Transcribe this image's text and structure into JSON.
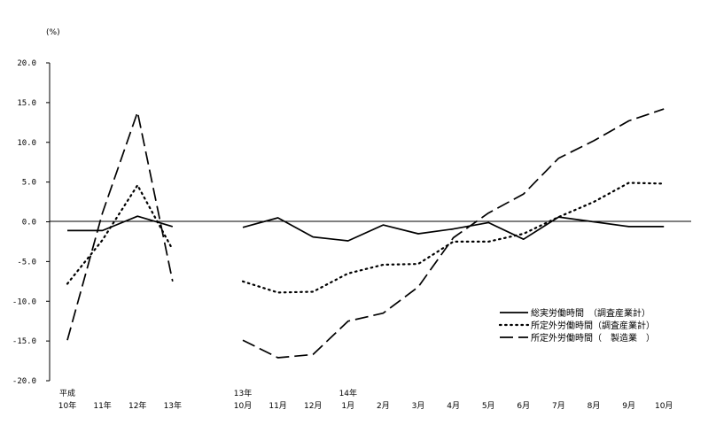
{
  "chart_data": {
    "type": "line",
    "unit": "(%)",
    "ylim": [
      -20,
      20
    ],
    "yticks": [
      "20.0",
      "15.0",
      "10.0",
      "5.0",
      "0.0",
      "-5.0",
      "-10.0",
      "-15.0",
      "-20.0"
    ],
    "ytick_values": [
      20,
      15,
      10,
      5,
      0,
      -5,
      -10,
      -15,
      -20
    ],
    "x_labels": [
      {
        "top": "平成",
        "bottom": "10年"
      },
      {
        "top": "",
        "bottom": "11年"
      },
      {
        "top": "",
        "bottom": "12年"
      },
      {
        "top": "",
        "bottom": "13年"
      },
      {
        "top": "",
        "bottom": ""
      },
      {
        "top": "13年",
        "bottom": "10月"
      },
      {
        "top": "",
        "bottom": "11月"
      },
      {
        "top": "",
        "bottom": "12月"
      },
      {
        "top": "14年",
        "bottom": "1月"
      },
      {
        "top": "",
        "bottom": "2月"
      },
      {
        "top": "",
        "bottom": "3月"
      },
      {
        "top": "",
        "bottom": "4月"
      },
      {
        "top": "",
        "bottom": "5月"
      },
      {
        "top": "",
        "bottom": "6月"
      },
      {
        "top": "",
        "bottom": "7月"
      },
      {
        "top": "",
        "bottom": "8月"
      },
      {
        "top": "",
        "bottom": "9月"
      },
      {
        "top": "",
        "bottom": "10月"
      }
    ],
    "grid": false,
    "legend_position": "bottom-right",
    "series": [
      {
        "name": "総実労働時間　（調査産業計）",
        "style": "solid",
        "segments": [
          [
            -1.1,
            -1.1,
            0.7,
            -0.6
          ],
          [
            -0.7,
            0.5,
            -1.9,
            -2.4,
            -0.4,
            -1.5,
            -0.9,
            -0.1,
            -2.2,
            0.6,
            0.0,
            -0.6,
            -0.6
          ]
        ]
      },
      {
        "name": "所定外労働時間（調査産業計）",
        "style": "dotted",
        "segments": [
          [
            -7.8,
            -2.3,
            4.6,
            -3.5
          ],
          [
            -7.5,
            -8.9,
            -8.8,
            -6.5,
            -5.4,
            -5.3,
            -2.5,
            -2.5,
            -1.5,
            0.6,
            2.5,
            4.9,
            4.8
          ]
        ]
      },
      {
        "name": "所定外労働時間（　製造業　）",
        "style": "dashed",
        "segments": [
          [
            -14.9,
            1.1,
            13.8,
            -7.5
          ],
          [
            -14.9,
            -17.1,
            -16.7,
            -12.5,
            -11.5,
            -8.2,
            -2.0,
            1.1,
            3.5,
            8.0,
            10.2,
            12.7,
            14.2
          ]
        ]
      }
    ]
  }
}
